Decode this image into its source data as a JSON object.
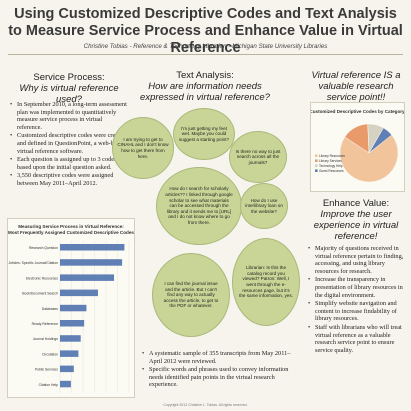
{
  "header": {
    "title_line1": "Using Customized Descriptive Codes and Text Analysis",
    "title_line2": "to Measure Service Process and Enhance Value in Virtual Reference",
    "byline": "Christine Tobias - Reference & Technology Librarian - Michigan State University Libraries"
  },
  "left": {
    "heading": "Service Process:",
    "subheading": "Why is virtual reference used?",
    "bullets": [
      "In September 2010, a long-term assessment plan was implemented to quantitatively measure service process in virtual reference.",
      "Customized descriptive codes were created and defined in QuestionPoint, a web-based virtual reference software.",
      "Each question is assigned up to 3 codes based upon the initial question asked.",
      "3,550 descriptive codes were assigned between May 2011–April 2012."
    ]
  },
  "middle": {
    "heading": "Text Analysis:",
    "subheading": "How are information needs expressed in virtual reference?",
    "bubbles": [
      "I am trying to get to CINAHL and I don't know how to get there from here.",
      "I'm just getting my feet wet. Maybe you could suggest a starting point?",
      "Is there no way to just search across all the journals?",
      "How do I search for scholarly articles?? I linked through google scholar to see what materials can be accessed through the library and it sends me to [URL] and I do not know where to go from there.",
      "How do I use interlibrary loan on the website?",
      "I can find the journal issue and the article. But I can't find any way to actually access the article, to get to the PDF or whatever.",
      "Librarian: Is this the catalog record you viewed? Patron: Well, I went through the e-resources page, but it's the same information, yes."
    ],
    "bullets": [
      "A systematic sample of 355 transcripts from May 2011–April 2012 were reviewed.",
      "Specific words and phrases used to convey information needs identified pain points in the virtual research experience."
    ]
  },
  "right": {
    "heading": "Virtual reference IS a valuable research service point!!",
    "heading2": "Enhance Value:",
    "subheading2": "Improve the user experience in virtual reference!",
    "bullets": [
      "Majority of questions received in virtual reference pertain to finding, accessing, and using library resources for research.",
      "Increase the transparency in presentation of library resources in the digital environment.",
      "Simplify website navigation and content to increase findability of library resources.",
      "Staff with librarians who will treat virtual reference as a valuable research service point to ensure service quality."
    ]
  },
  "colors": {
    "bar": "#5f7fb5",
    "bubble_fill": "#c9d596",
    "pie_main": "#f2c49c",
    "pie_2": "#e99a6a",
    "pie_3": "#d6d2c2",
    "pie_4": "#5f7fb5"
  },
  "chart_data": [
    {
      "type": "bar",
      "title": "Measuring Service Process in Virtual Reference: Most Frequently Assigned Customized Descriptive Codes",
      "categories": [
        "Research Question",
        "Articles: Specific Journal/Citation",
        "Electronic Resources",
        "Book/Document Search",
        "Databases",
        "Ready Reference",
        "Journal Holdings",
        "Circulation",
        "Public Services",
        "Citation Help"
      ],
      "values": [
        560,
        540,
        470,
        330,
        230,
        210,
        180,
        160,
        120,
        95
      ],
      "xlim": [
        0,
        600
      ],
      "grid": true
    },
    {
      "type": "pie",
      "title": "Customized Descriptive Codes by Category",
      "labels": [
        "Library Resources",
        "Library Services",
        "Technology Help",
        "Guest Resources"
      ],
      "values": [
        70,
        15,
        9,
        6
      ]
    }
  ],
  "footer": "Copyright 2012 Christine L. Tobias. All rights reserved."
}
